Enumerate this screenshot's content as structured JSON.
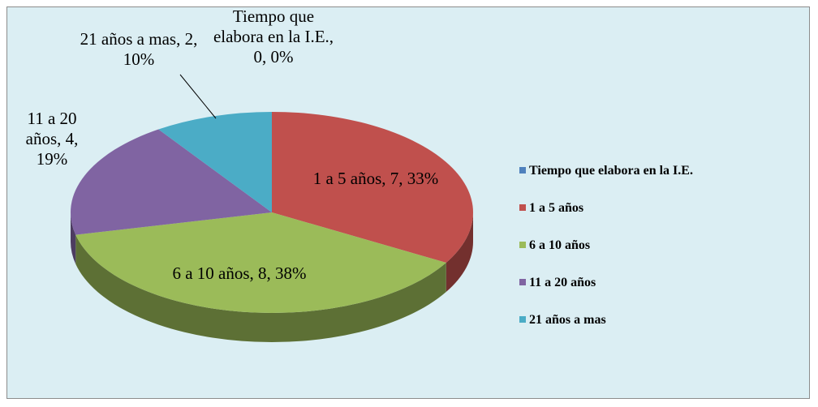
{
  "chart_data": {
    "type": "pie",
    "categories": [
      "Tiempo que elabora en la I.E.",
      "1 a 5 años",
      "6 a 10 años",
      "11 a 20 años",
      "21 años a mas"
    ],
    "values": [
      0,
      7,
      8,
      4,
      2
    ],
    "value_labels": [
      "Tiempo que elabora en la I.E., 0, 0%",
      "1 a 5 años, 7, 33%",
      "6 a 10 años, 8, 38%",
      "11 a 20 años, 4, 19%",
      "21 años a mas, 2, 10%"
    ],
    "colors": [
      "#4f81bd",
      "#c0504d",
      "#9bbb59",
      "#8064a2",
      "#4bacc6"
    ],
    "legend": "right"
  }
}
